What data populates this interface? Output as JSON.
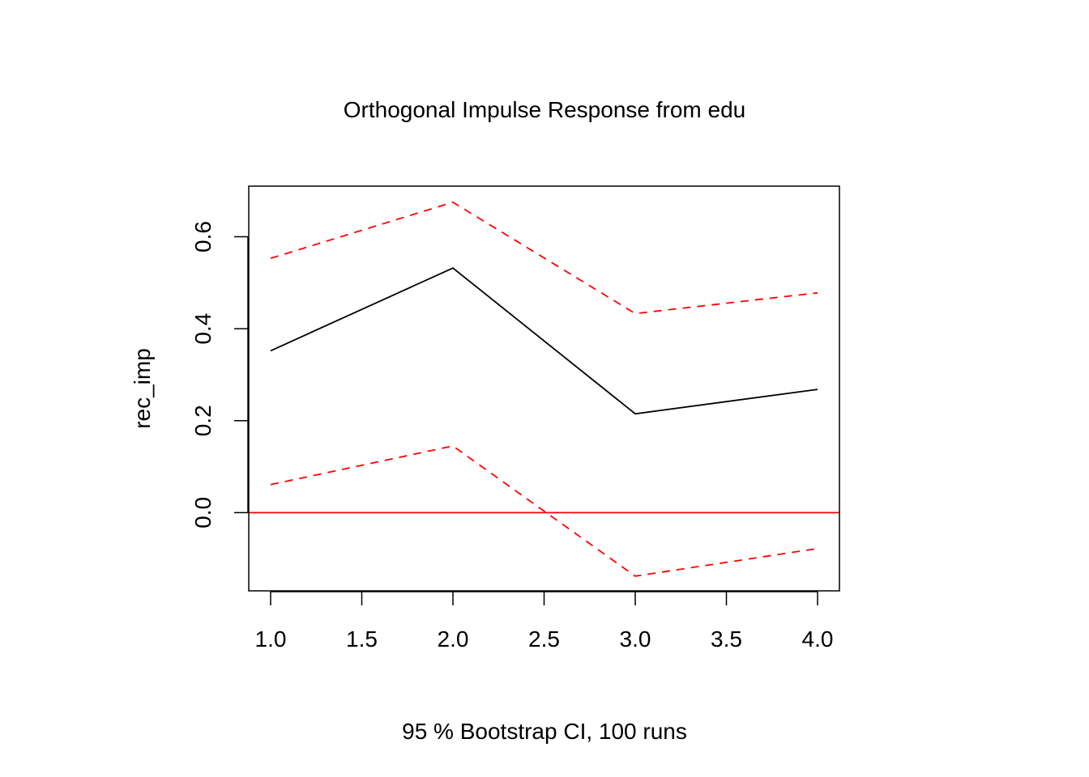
{
  "chart_data": {
    "type": "line",
    "title": "Orthogonal Impulse Response from edu",
    "xlabel": "95 % Bootstrap CI,  100 runs",
    "ylabel": "rec_imp",
    "x": [
      1,
      2,
      3,
      4
    ],
    "xlim": [
      0.88,
      4.12
    ],
    "ylim": [
      -0.17,
      0.71
    ],
    "x_ticks": [
      {
        "value": 1.0,
        "label": "1.0"
      },
      {
        "value": 1.5,
        "label": "1.5"
      },
      {
        "value": 2.0,
        "label": "2.0"
      },
      {
        "value": 2.5,
        "label": "2.5"
      },
      {
        "value": 3.0,
        "label": "3.0"
      },
      {
        "value": 3.5,
        "label": "3.5"
      },
      {
        "value": 4.0,
        "label": "4.0"
      }
    ],
    "y_ticks": [
      {
        "value": 0.0,
        "label": "0.0"
      },
      {
        "value": 0.2,
        "label": "0.2"
      },
      {
        "value": 0.4,
        "label": "0.4"
      },
      {
        "value": 0.6,
        "label": "0.6"
      }
    ],
    "grid": false,
    "series": [
      {
        "role": "response",
        "values": [
          0.352,
          0.532,
          0.215,
          0.268
        ],
        "color": "#000000",
        "style": "solid"
      },
      {
        "role": "upper",
        "values": [
          0.553,
          0.675,
          0.433,
          0.478
        ],
        "color": "#ff0000",
        "style": "dashed"
      },
      {
        "role": "lower",
        "values": [
          0.061,
          0.145,
          -0.138,
          -0.078
        ],
        "color": "#ff0000",
        "style": "dashed"
      }
    ],
    "reference_line": {
      "y": 0,
      "color": "#ff0000"
    }
  }
}
